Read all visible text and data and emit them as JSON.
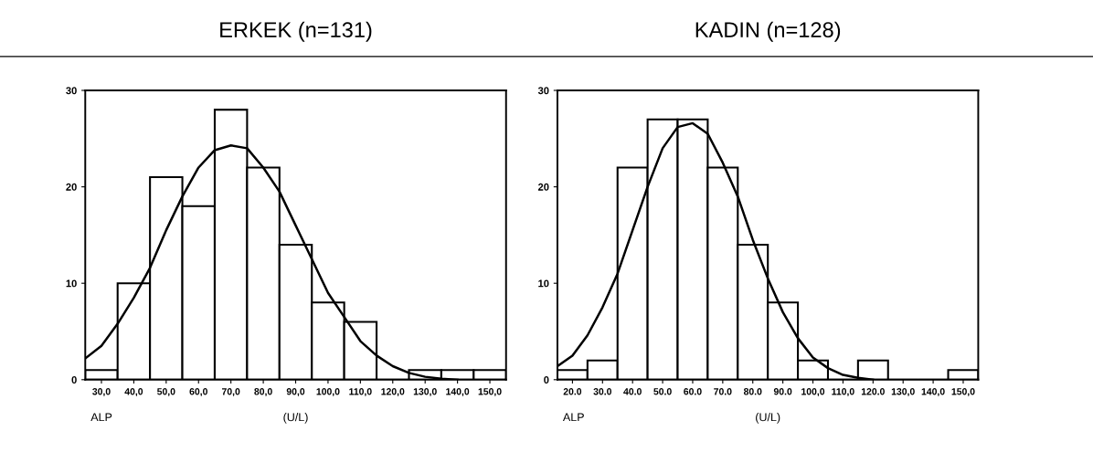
{
  "chart_data": [
    {
      "type": "histogram",
      "title": "ERKEK (n=131)",
      "xlabel": "(U/L)",
      "annotations": [
        "ALP"
      ],
      "color": "#ffffff",
      "bins": [
        25,
        35,
        45,
        55,
        65,
        75,
        85,
        95,
        105,
        115,
        125,
        135,
        145,
        155
      ],
      "values": [
        1,
        10,
        21,
        18,
        28,
        22,
        14,
        8,
        6,
        0,
        1,
        1,
        1
      ],
      "series": [
        {
          "type": "line",
          "color": "#000000",
          "x": [
            25,
            30,
            35,
            40,
            45,
            50,
            55,
            60,
            65,
            70,
            75,
            80,
            85,
            90,
            95,
            100,
            105,
            110,
            115,
            120,
            125,
            130,
            135,
            140
          ],
          "values": [
            2.2,
            3.5,
            5.8,
            8.5,
            11.6,
            15.5,
            19,
            22,
            23.8,
            24.3,
            24,
            22,
            19.5,
            16,
            12.5,
            9,
            6.5,
            4,
            2.5,
            1.4,
            0.7,
            0.3,
            0.1,
            0
          ]
        }
      ],
      "xlim": [
        25,
        155
      ],
      "ylim": [
        0,
        30
      ],
      "yticks": [
        0,
        10,
        20,
        30
      ],
      "xticks": [
        {
          "value": 30,
          "label": "30,0"
        },
        {
          "value": 40,
          "label": "40,0"
        },
        {
          "value": 50,
          "label": "50,0"
        },
        {
          "value": 60,
          "label": "60,0"
        },
        {
          "value": 70,
          "label": "70,0"
        },
        {
          "value": 80,
          "label": "80,0"
        },
        {
          "value": 90,
          "label": "90,0"
        },
        {
          "value": 100,
          "label": "100,0"
        },
        {
          "value": 110,
          "label": "110,0"
        },
        {
          "value": 120,
          "label": "120,0"
        },
        {
          "value": 130,
          "label": "130,0"
        },
        {
          "value": 140,
          "label": "140,0"
        },
        {
          "value": 150,
          "label": "150,0"
        }
      ]
    },
    {
      "type": "histogram",
      "title": "KADIN (n=128)",
      "xlabel": "(U/L)",
      "annotations": [
        "ALP"
      ],
      "color": "#ffffff",
      "bins": [
        15,
        25,
        35,
        45,
        55,
        65,
        75,
        85,
        95,
        105,
        115,
        125,
        135,
        145,
        155
      ],
      "values": [
        1,
        2,
        22,
        27,
        27,
        22,
        14,
        8,
        2,
        0,
        2,
        0,
        0,
        1
      ],
      "series": [
        {
          "type": "line",
          "color": "#000000",
          "x": [
            15,
            20,
            25,
            30,
            35,
            40,
            45,
            50,
            55,
            60,
            65,
            70,
            75,
            80,
            85,
            90,
            95,
            100,
            105,
            110,
            115,
            120
          ],
          "values": [
            1.4,
            2.5,
            4.6,
            7.5,
            11,
            15.5,
            20,
            24,
            26.2,
            26.6,
            25.5,
            22.5,
            19,
            14.5,
            10.5,
            7,
            4.3,
            2.3,
            1.2,
            0.5,
            0.2,
            0
          ]
        }
      ],
      "xlim": [
        15,
        155
      ],
      "ylim": [
        0,
        30
      ],
      "yticks": [
        0,
        10,
        20,
        30
      ],
      "xticks": [
        {
          "value": 20,
          "label": "20.0"
        },
        {
          "value": 30,
          "label": "30.0"
        },
        {
          "value": 40,
          "label": "40.0"
        },
        {
          "value": 50,
          "label": "50.0"
        },
        {
          "value": 60,
          "label": "60.0"
        },
        {
          "value": 70,
          "label": "70.0"
        },
        {
          "value": 80,
          "label": "80.0"
        },
        {
          "value": 90,
          "label": "90.0"
        },
        {
          "value": 100,
          "label": "100,0"
        },
        {
          "value": 110,
          "label": "110,0"
        },
        {
          "value": 120,
          "label": "120.0"
        },
        {
          "value": 130,
          "label": "130,0"
        },
        {
          "value": 140,
          "label": "140,0"
        },
        {
          "value": 150,
          "label": "150,0"
        }
      ]
    }
  ]
}
